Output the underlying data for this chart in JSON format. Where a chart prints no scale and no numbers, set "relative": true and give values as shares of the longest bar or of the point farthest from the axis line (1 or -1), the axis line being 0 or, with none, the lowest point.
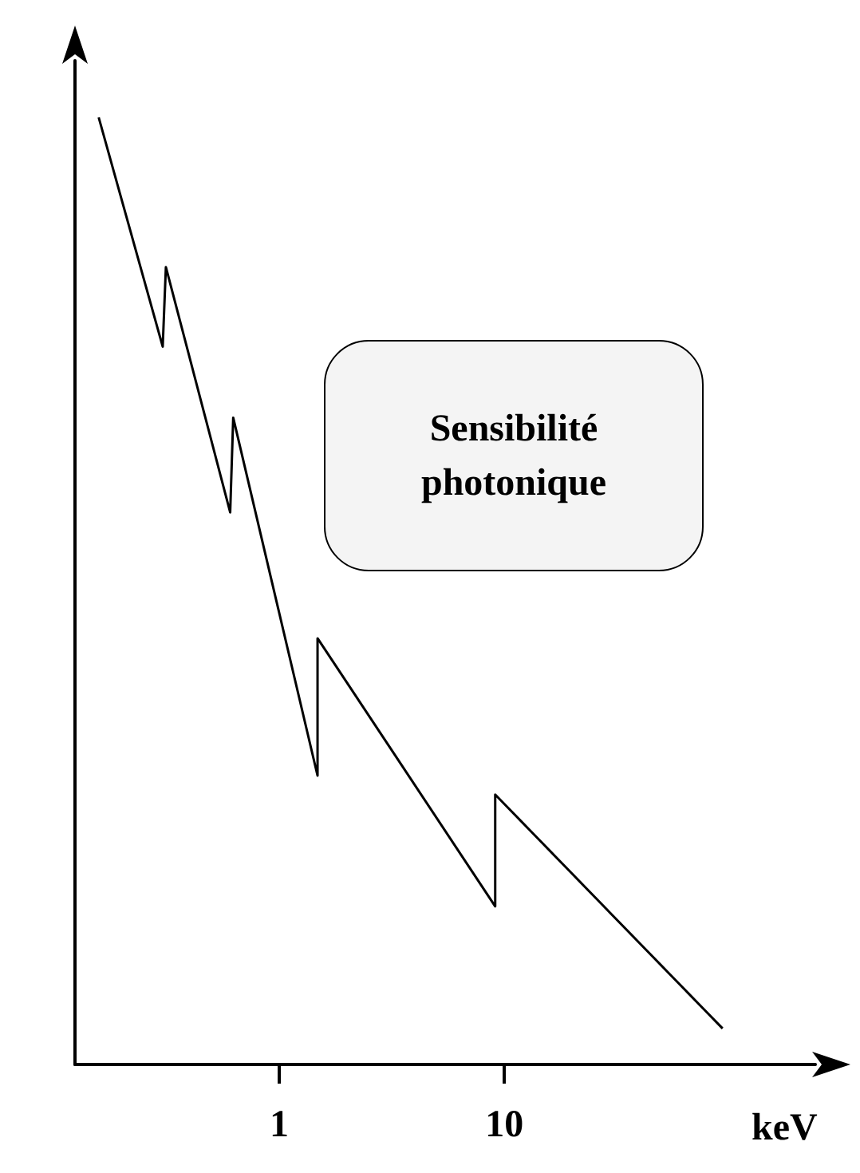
{
  "chart_data": {
    "type": "line",
    "relative": true,
    "xlabel": "keV",
    "log": "x",
    "xlim": [
      0.124,
      240
    ],
    "xticks": [
      1,
      10
    ],
    "marker": "none",
    "line_style": "solid",
    "x": [
      0.158,
      0.304,
      0.314,
      0.606,
      0.625,
      1.48,
      1.48,
      9.1,
      9.1,
      93
    ],
    "series": [
      {
        "color": "#000000",
        "values": [
          1,
          0.758,
          0.842,
          0.583,
          0.683,
          0.305,
          0.45,
          0.167,
          0.285,
          0.038
        ]
      }
    ],
    "annotations": [
      "Sensibilité\nphotonique"
    ]
  }
}
